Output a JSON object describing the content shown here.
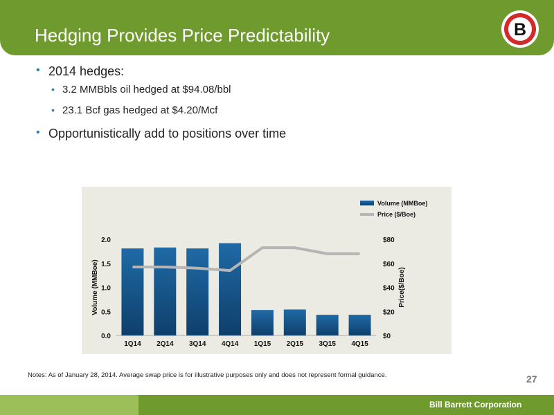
{
  "header": {
    "title": "Hedging Provides Price Predictability"
  },
  "logo": {
    "letter": "B"
  },
  "bullets": {
    "b1": "2014 hedges:",
    "b2": "3.2 MMBbls oil hedged at $94.08/bbl",
    "b3": "23.1 Bcf gas hedged at $4.20/Mcf",
    "b4": "Opportunistically add to positions over time",
    "dot": "•"
  },
  "chart_data": {
    "type": "bar",
    "categories": [
      "1Q14",
      "2Q14",
      "3Q14",
      "4Q14",
      "1Q15",
      "2Q15",
      "3Q15",
      "4Q15"
    ],
    "series": [
      {
        "name": "Volume (MMBoe)",
        "type": "bar",
        "axis": "left",
        "values": [
          1.81,
          1.83,
          1.81,
          1.92,
          0.53,
          0.54,
          0.43,
          0.43
        ],
        "color": "#1a5a8e"
      },
      {
        "name": "Price ($/Boe)",
        "type": "line",
        "axis": "right",
        "values": [
          57,
          57,
          56,
          54,
          73,
          73,
          68,
          68
        ],
        "color": "#b5b5b5"
      }
    ],
    "ylabel": "Volume (MMBoe)",
    "y2label": "Price($/Boe)",
    "ylim": [
      0,
      2.0
    ],
    "y2lim": [
      0,
      80
    ],
    "yticks": [
      "0.0",
      "0.5",
      "1.0",
      "1.5",
      "2.0"
    ],
    "y2ticks": [
      "$0",
      "$20",
      "$40",
      "$60",
      "$80"
    ],
    "legend_position": "top-right",
    "grid": false
  },
  "notes": "Notes: As of January 28, 2014. Average swap price is for illustrative purposes only and does not represent formal guidance.",
  "page_number": "27",
  "footer": {
    "brand": "Bill Barrett Corporation"
  }
}
